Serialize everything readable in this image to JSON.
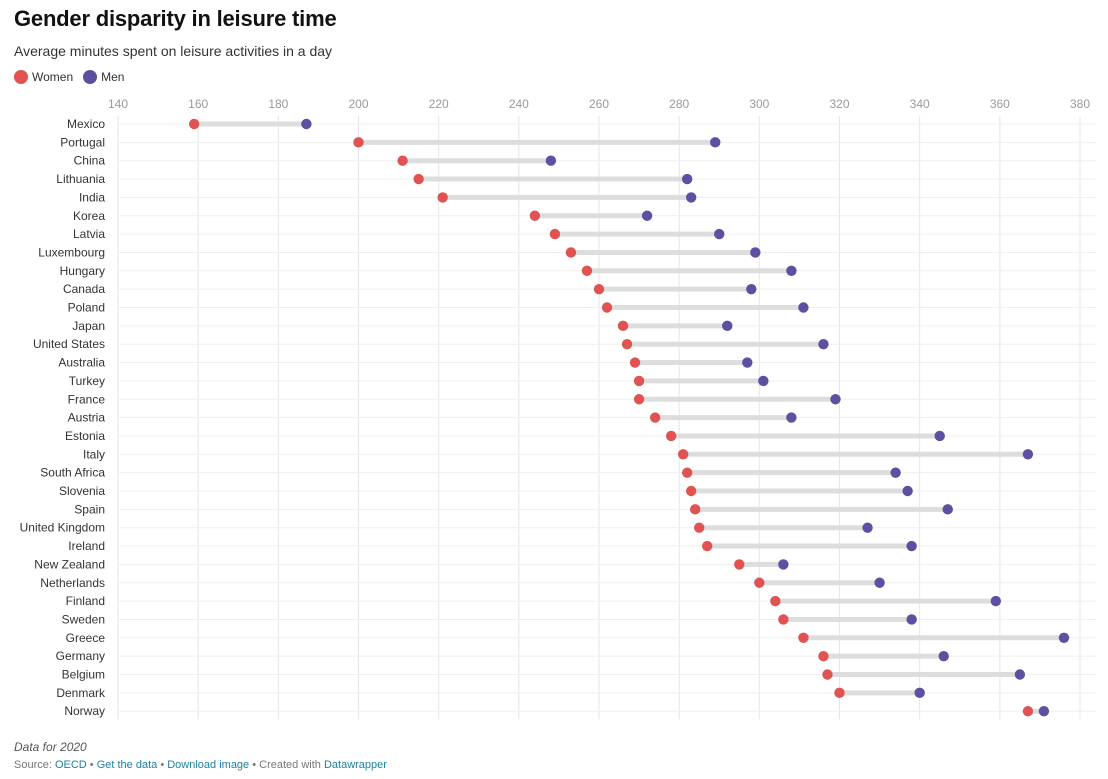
{
  "title": "Gender disparity in leisure time",
  "subtitle": "Average minutes spent on leisure activities in a day",
  "legend": {
    "women_label": "Women",
    "men_label": "Men"
  },
  "colors": {
    "women": "#e05353",
    "men": "#5f4fa0",
    "connector": "#dddddd",
    "grid": "#e6e6e6",
    "link": "#1d81a2"
  },
  "footer": {
    "note": "Data for 2020",
    "source_prefix": "Source: ",
    "source_name": "OECD",
    "separator": " • ",
    "get_data": "Get the data",
    "download": "Download image",
    "created_with": "Created with ",
    "tool": "Datawrapper"
  },
  "chart_data": {
    "type": "dot-range",
    "title": "Gender disparity in leisure time",
    "subtitle": "Average minutes spent on leisure activities in a day",
    "xlim": [
      140,
      385
    ],
    "xticks": [
      140,
      160,
      180,
      200,
      220,
      240,
      260,
      280,
      300,
      320,
      340,
      360,
      380
    ],
    "xaxis_position": "top",
    "grid": true,
    "legend_position": "top-left",
    "categories": [
      "Mexico",
      "Portugal",
      "China",
      "Lithuania",
      "India",
      "Korea",
      "Latvia",
      "Luxembourg",
      "Hungary",
      "Canada",
      "Poland",
      "Japan",
      "United States",
      "Australia",
      "Turkey",
      "France",
      "Austria",
      "Estonia",
      "Italy",
      "South Africa",
      "Slovenia",
      "Spain",
      "United Kingdom",
      "Ireland",
      "New Zealand",
      "Netherlands",
      "Finland",
      "Sweden",
      "Greece",
      "Germany",
      "Belgium",
      "Denmark",
      "Norway"
    ],
    "series": [
      {
        "name": "Women",
        "values": [
          159,
          200,
          211,
          215,
          221,
          244,
          249,
          253,
          257,
          260,
          262,
          266,
          267,
          269,
          270,
          270,
          274,
          278,
          281,
          282,
          283,
          284,
          285,
          287,
          295,
          300,
          304,
          306,
          311,
          316,
          317,
          320,
          367
        ]
      },
      {
        "name": "Men",
        "values": [
          187,
          289,
          248,
          282,
          283,
          272,
          290,
          299,
          308,
          298,
          311,
          292,
          316,
          297,
          301,
          319,
          308,
          345,
          367,
          334,
          337,
          347,
          327,
          338,
          306,
          330,
          359,
          338,
          376,
          346,
          365,
          340,
          371
        ]
      }
    ]
  }
}
